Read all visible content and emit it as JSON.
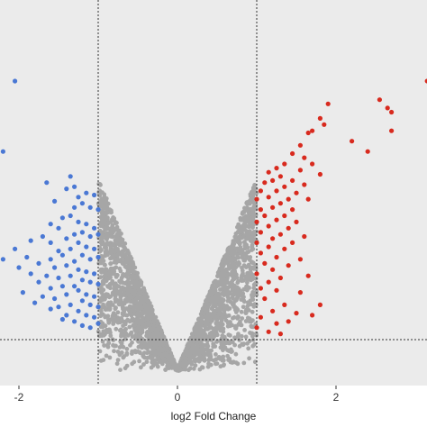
{
  "chart_data": {
    "type": "scatter",
    "title": "",
    "xlabel": "log2 Fold Change",
    "ylabel": "",
    "xlim": [
      -2.2,
      3.15
    ],
    "ylim": [
      0,
      8.1
    ],
    "x_ticks": [
      {
        "value": -2,
        "label": "-2"
      },
      {
        "value": 0,
        "label": "0"
      },
      {
        "value": 2,
        "label": "2"
      }
    ],
    "grid": false,
    "legend": "none",
    "reference_lines": {
      "vertical": [
        -1,
        1
      ],
      "horizontal": [
        1.0
      ],
      "style": "dotted"
    },
    "colors": {
      "down": "#4a78d4",
      "up": "#d82a1e",
      "not_significant": "#a6a6a6",
      "panel": "#ebebeb"
    },
    "series": [
      {
        "category": "down",
        "points": [
          [
            -2.05,
            7.0
          ],
          [
            -2.2,
            5.3
          ],
          [
            -1.35,
            4.7
          ],
          [
            -1.65,
            4.55
          ],
          [
            -1.3,
            4.45
          ],
          [
            -1.4,
            4.4
          ],
          [
            -1.15,
            4.3
          ],
          [
            -1.25,
            4.2
          ],
          [
            -1.05,
            4.25
          ],
          [
            -1.1,
            3.95
          ],
          [
            -1.2,
            4.05
          ],
          [
            -1.0,
            3.9
          ],
          [
            -1.55,
            4.1
          ],
          [
            -1.3,
            3.95
          ],
          [
            -1.35,
            3.75
          ],
          [
            -1.25,
            3.6
          ],
          [
            -1.45,
            3.7
          ],
          [
            -1.15,
            3.55
          ],
          [
            -1.05,
            3.45
          ],
          [
            -1.6,
            3.55
          ],
          [
            -1.5,
            3.45
          ],
          [
            -1.2,
            3.35
          ],
          [
            -1.1,
            3.25
          ],
          [
            -1.3,
            3.3
          ],
          [
            -1.4,
            3.2
          ],
          [
            -1.0,
            3.3
          ],
          [
            -1.7,
            3.25
          ],
          [
            -1.85,
            3.15
          ],
          [
            -1.6,
            3.1
          ],
          [
            -1.25,
            3.1
          ],
          [
            -1.15,
            3.0
          ],
          [
            -1.05,
            2.95
          ],
          [
            -1.35,
            2.95
          ],
          [
            -1.5,
            2.9
          ],
          [
            -1.45,
            2.8
          ],
          [
            -1.2,
            2.8
          ],
          [
            -1.1,
            2.7
          ],
          [
            -1.0,
            2.75
          ],
          [
            -1.3,
            2.65
          ],
          [
            -1.6,
            2.7
          ],
          [
            -1.75,
            2.6
          ],
          [
            -1.9,
            2.75
          ],
          [
            -2.05,
            2.95
          ],
          [
            -2.2,
            2.7
          ],
          [
            -2.0,
            2.5
          ],
          [
            -1.55,
            2.5
          ],
          [
            -1.4,
            2.55
          ],
          [
            -1.25,
            2.45
          ],
          [
            -1.15,
            2.4
          ],
          [
            -1.05,
            2.35
          ],
          [
            -1.35,
            2.3
          ],
          [
            -1.5,
            2.25
          ],
          [
            -1.65,
            2.3
          ],
          [
            -1.2,
            2.2
          ],
          [
            -1.1,
            2.15
          ],
          [
            -1.0,
            2.1
          ],
          [
            -1.3,
            2.05
          ],
          [
            -1.45,
            2.05
          ],
          [
            -1.6,
            2.0
          ],
          [
            -1.75,
            2.15
          ],
          [
            -1.85,
            2.35
          ],
          [
            -1.25,
            1.95
          ],
          [
            -1.15,
            1.85
          ],
          [
            -1.05,
            1.8
          ],
          [
            -1.4,
            1.85
          ],
          [
            -1.55,
            1.75
          ],
          [
            -1.7,
            1.8
          ],
          [
            -1.2,
            1.7
          ],
          [
            -1.1,
            1.6
          ],
          [
            -1.0,
            1.55
          ],
          [
            -1.35,
            1.6
          ],
          [
            -1.5,
            1.55
          ],
          [
            -1.25,
            1.45
          ],
          [
            -1.15,
            1.35
          ],
          [
            -1.05,
            1.3
          ],
          [
            -1.4,
            1.35
          ],
          [
            -1.3,
            1.2
          ],
          [
            -1.2,
            1.1
          ],
          [
            -1.1,
            1.05
          ],
          [
            -1.0,
            1.15
          ],
          [
            -1.6,
            1.5
          ],
          [
            -1.8,
            1.65
          ],
          [
            -1.95,
            1.9
          ],
          [
            -1.45,
            1.25
          ]
        ]
      },
      {
        "category": "up",
        "points": [
          [
            3.15,
            7.0
          ],
          [
            2.55,
            6.55
          ],
          [
            2.65,
            6.35
          ],
          [
            2.7,
            6.25
          ],
          [
            1.9,
            6.45
          ],
          [
            1.8,
            6.1
          ],
          [
            1.85,
            5.95
          ],
          [
            1.7,
            5.8
          ],
          [
            1.65,
            5.75
          ],
          [
            2.7,
            5.8
          ],
          [
            2.2,
            5.55
          ],
          [
            1.55,
            5.45
          ],
          [
            2.4,
            5.3
          ],
          [
            1.6,
            5.15
          ],
          [
            1.45,
            5.25
          ],
          [
            1.35,
            5.0
          ],
          [
            1.7,
            5.0
          ],
          [
            1.25,
            4.9
          ],
          [
            1.55,
            4.85
          ],
          [
            1.15,
            4.8
          ],
          [
            1.3,
            4.7
          ],
          [
            1.8,
            4.75
          ],
          [
            1.2,
            4.6
          ],
          [
            1.45,
            4.6
          ],
          [
            1.1,
            4.55
          ],
          [
            1.35,
            4.45
          ],
          [
            1.6,
            4.5
          ],
          [
            1.05,
            4.35
          ],
          [
            1.25,
            4.35
          ],
          [
            1.5,
            4.3
          ],
          [
            1.15,
            4.2
          ],
          [
            1.4,
            4.15
          ],
          [
            1.0,
            4.15
          ],
          [
            1.3,
            4.05
          ],
          [
            1.65,
            4.15
          ],
          [
            1.2,
            3.95
          ],
          [
            1.05,
            3.9
          ],
          [
            1.45,
            3.9
          ],
          [
            1.1,
            3.75
          ],
          [
            1.35,
            3.75
          ],
          [
            1.25,
            3.65
          ],
          [
            1.0,
            3.6
          ],
          [
            1.5,
            3.6
          ],
          [
            1.15,
            3.5
          ],
          [
            1.4,
            3.45
          ],
          [
            1.05,
            3.35
          ],
          [
            1.3,
            3.3
          ],
          [
            1.2,
            3.2
          ],
          [
            1.0,
            3.1
          ],
          [
            1.45,
            3.1
          ],
          [
            1.6,
            3.25
          ],
          [
            1.15,
            3.0
          ],
          [
            1.35,
            2.95
          ],
          [
            1.05,
            2.85
          ],
          [
            1.25,
            2.75
          ],
          [
            1.1,
            2.6
          ],
          [
            1.4,
            2.55
          ],
          [
            1.55,
            2.7
          ],
          [
            1.2,
            2.45
          ],
          [
            1.0,
            2.35
          ],
          [
            1.3,
            2.25
          ],
          [
            1.15,
            2.15
          ],
          [
            1.05,
            2.0
          ],
          [
            1.25,
            1.95
          ],
          [
            1.65,
            2.3
          ],
          [
            1.1,
            1.75
          ],
          [
            1.35,
            1.6
          ],
          [
            1.2,
            1.45
          ],
          [
            1.05,
            1.3
          ],
          [
            1.4,
            1.2
          ],
          [
            1.55,
            1.9
          ],
          [
            1.8,
            1.6
          ],
          [
            1.0,
            1.05
          ],
          [
            1.25,
            1.15
          ],
          [
            1.5,
            1.4
          ],
          [
            1.7,
            1.35
          ],
          [
            1.15,
            0.95
          ],
          [
            1.3,
            0.9
          ]
        ]
      }
    ]
  }
}
